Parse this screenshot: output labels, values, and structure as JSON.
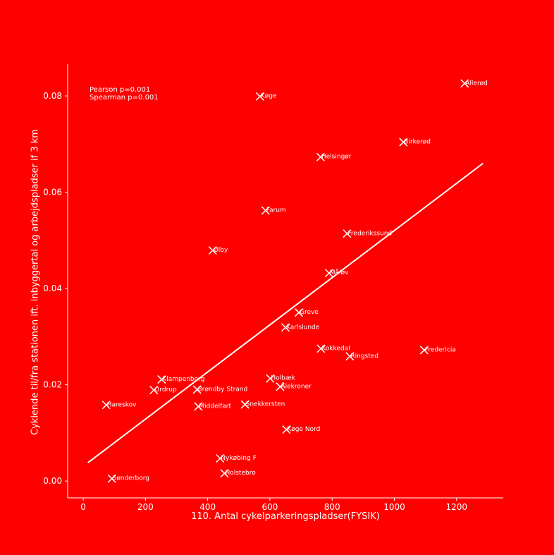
{
  "colors": {
    "background": "#ff0000",
    "foreground": "#ffffff"
  },
  "chart_data": {
    "type": "scatter",
    "xlabel": "110. Antal cykelparkeringspladser(FYSIK)",
    "ylabel": "Cyklende til/fra stationen ift. inbyggertal og arbejdspladser if 3 km",
    "annotations": [
      "Pearson p=0.001",
      "Spearman p=0.001"
    ],
    "xlim": [
      -50,
      1350
    ],
    "ylim": [
      -0.0035,
      0.0866
    ],
    "xticks": [
      0,
      200,
      400,
      600,
      800,
      1000,
      1200
    ],
    "yticks": [
      0.0,
      0.02,
      0.04,
      0.06,
      0.08
    ],
    "xtick_labels": [
      "0",
      "200",
      "400",
      "600",
      "800",
      "1000",
      "1200"
    ],
    "ytick_labels": [
      "0.00",
      "0.02",
      "0.04",
      "0.06",
      "0.08"
    ],
    "grid": false,
    "marker": "x",
    "points": [
      {
        "label": "Allerød",
        "x": 1226,
        "y": 0.0826
      },
      {
        "label": "Køge",
        "x": 568,
        "y": 0.0799
      },
      {
        "label": "Birkerød",
        "x": 1029,
        "y": 0.0704
      },
      {
        "label": "Helsingør",
        "x": 763,
        "y": 0.0673
      },
      {
        "label": "Farum",
        "x": 586,
        "y": 0.0562
      },
      {
        "label": "Frederikssund",
        "x": 848,
        "y": 0.0514
      },
      {
        "label": "Ølby",
        "x": 416,
        "y": 0.0479
      },
      {
        "label": "Måløv",
        "x": 790,
        "y": 0.0432
      },
      {
        "label": "Greve",
        "x": 693,
        "y": 0.035
      },
      {
        "label": "Karlslunde",
        "x": 650,
        "y": 0.0319
      },
      {
        "label": "Kokkedal",
        "x": 764,
        "y": 0.0275
      },
      {
        "label": "Fredericia",
        "x": 1096,
        "y": 0.0272
      },
      {
        "label": "Ringsted",
        "x": 857,
        "y": 0.0259
      },
      {
        "label": "Klampenborg",
        "x": 252,
        "y": 0.0211
      },
      {
        "label": "Holbæk",
        "x": 601,
        "y": 0.0213
      },
      {
        "label": "Ordrup",
        "x": 227,
        "y": 0.0189
      },
      {
        "label": "Brøndby Strand",
        "x": 366,
        "y": 0.019
      },
      {
        "label": "Ålekroner",
        "x": 633,
        "y": 0.0196
      },
      {
        "label": "Hareskov",
        "x": 74,
        "y": 0.0158
      },
      {
        "label": "Middelfart",
        "x": 370,
        "y": 0.0155
      },
      {
        "label": "Snekkersten",
        "x": 520,
        "y": 0.0159
      },
      {
        "label": "Køge Nord",
        "x": 653,
        "y": 0.0107
      },
      {
        "label": "Nykøbing F",
        "x": 440,
        "y": 0.0047
      },
      {
        "label": "Holstebro",
        "x": 454,
        "y": 0.0016
      },
      {
        "label": "Sønderborg",
        "x": 92,
        "y": 0.0005
      }
    ],
    "trendline": {
      "x": [
        15,
        1285
      ],
      "y": [
        0.0038,
        0.066
      ]
    }
  }
}
